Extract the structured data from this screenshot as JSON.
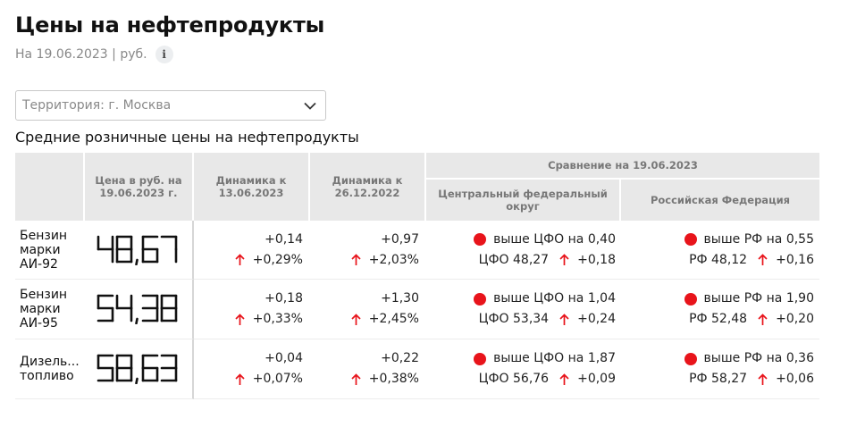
{
  "header": {
    "title": "Цены на нефтепродукты",
    "subtitle": "На 19.06.2023 | руб.",
    "info_icon": "info-icon"
  },
  "territory": {
    "value": "Территория: г. Москва",
    "icon": "chevron-down-icon"
  },
  "section_title": "Средние розничные цены на нефтепродукты",
  "colors": {
    "accent_red": "#e8141b",
    "header_bg": "#e8e8e8",
    "digit_color": "#111111"
  },
  "table": {
    "headers": {
      "price": "Цена в руб. на 19.06.2023 г.",
      "dyn1": "Динамика к 13.06.2023",
      "dyn2": "Динамика к 26.12.2022",
      "comparison": "Сравнение на 19.06.2023",
      "cfo": "Центральный федеральный округ",
      "rf": "Российская Федерация"
    },
    "rows": [
      {
        "name": "Бензин марки АИ-92",
        "price": "48,67",
        "dyn1_abs": "+0,14",
        "dyn1_pct": "+0,29%",
        "dyn2_abs": "+0,97",
        "dyn2_pct": "+2,03%",
        "cfo_status": "выше ЦФО на 0,40",
        "cfo_value": "ЦФО 48,27",
        "cfo_change": "+0,18",
        "rf_status": "выше РФ на 0,55",
        "rf_value": "РФ 48,12",
        "rf_change": "+0,16"
      },
      {
        "name": "Бензин марки АИ-95",
        "price": "54,38",
        "dyn1_abs": "+0,18",
        "dyn1_pct": "+0,33%",
        "dyn2_abs": "+1,30",
        "dyn2_pct": "+2,45%",
        "cfo_status": "выше ЦФО на 1,04",
        "cfo_value": "ЦФО 53,34",
        "cfo_change": "+0,24",
        "rf_status": "выше РФ на 1,90",
        "rf_value": "РФ 52,48",
        "rf_change": "+0,20"
      },
      {
        "name": "Дизель... топливо",
        "price": "58,63",
        "dyn1_abs": "+0,04",
        "dyn1_pct": "+0,07%",
        "dyn2_abs": "+0,22",
        "dyn2_pct": "+0,38%",
        "cfo_status": "выше ЦФО на 1,87",
        "cfo_value": "ЦФО 56,76",
        "cfo_change": "+0,09",
        "rf_status": "выше РФ на 0,36",
        "rf_value": "РФ 58,27",
        "rf_change": "+0,06"
      }
    ]
  }
}
